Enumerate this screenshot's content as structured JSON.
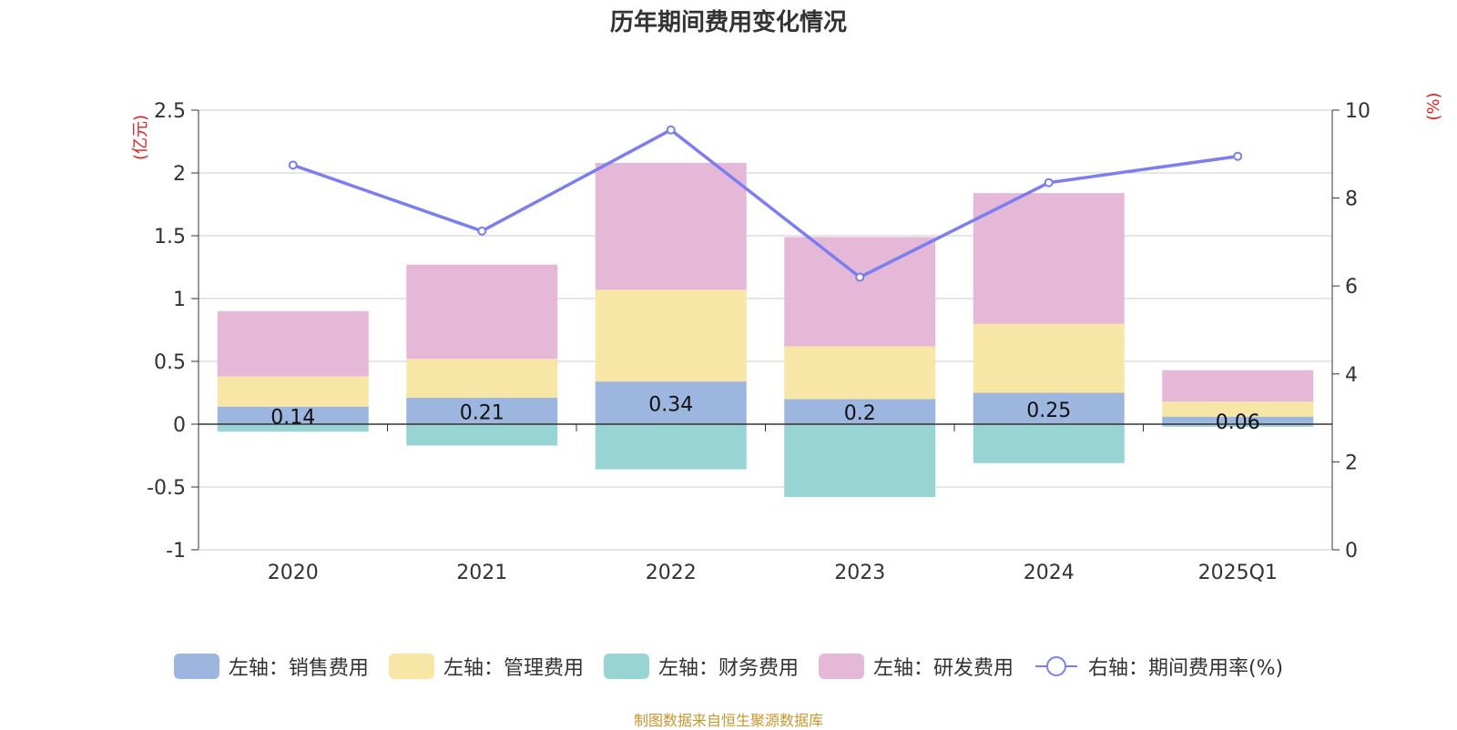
{
  "title": "历年期间费用变化情况",
  "source": "制图数据来自恒生聚源数据库",
  "chart_data": {
    "type": "bar",
    "stacked": true,
    "categories": [
      "2020",
      "2021",
      "2022",
      "2023",
      "2024",
      "2025Q1"
    ],
    "left_axis": {
      "unit": "(亿元)",
      "ylim": [
        -1,
        2.5
      ],
      "ticks": [
        -1,
        -0.5,
        0,
        0.5,
        1,
        1.5,
        2,
        2.5
      ]
    },
    "right_axis": {
      "unit": "(%)",
      "ylim": [
        0,
        10
      ],
      "ticks": [
        0,
        2,
        4,
        6,
        8,
        10
      ]
    },
    "series": [
      {
        "name": "左轴：销售费用",
        "type": "bar",
        "color": "#9cb6e0",
        "values": [
          0.14,
          0.21,
          0.34,
          0.2,
          0.25,
          0.06
        ],
        "labels": [
          "0.14",
          "0.21",
          "0.34",
          "0.2",
          "0.25",
          "0.06"
        ]
      },
      {
        "name": "左轴：管理费用",
        "type": "bar",
        "color": "#f7e6a6",
        "values": [
          0.24,
          0.31,
          0.73,
          0.42,
          0.55,
          0.12
        ]
      },
      {
        "name": "左轴：财务费用",
        "type": "bar",
        "color": "#98d4d4",
        "values": [
          -0.06,
          -0.17,
          -0.36,
          -0.58,
          -0.31,
          -0.02
        ]
      },
      {
        "name": "左轴：研发费用",
        "type": "bar",
        "color": "#e6b8d8",
        "values": [
          0.52,
          0.75,
          1.01,
          0.87,
          1.04,
          0.25
        ]
      },
      {
        "name": "右轴：期间费用率(%)",
        "type": "line",
        "axis": "right",
        "color": "#7b7ef0",
        "values": [
          8.75,
          7.25,
          9.55,
          6.2,
          8.35,
          8.95
        ]
      }
    ],
    "grid": true,
    "legend_position": "bottom"
  }
}
